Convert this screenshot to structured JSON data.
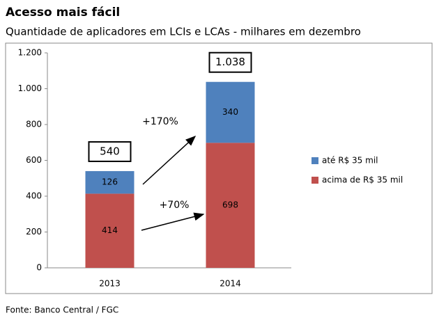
{
  "chart_data": {
    "type": "stacked_bar",
    "title": "Acesso mais fácil",
    "subtitle": "Quantidade de aplicadores em LCIs e LCAs - milhares em dezembro",
    "source": "Fonte: Banco Central / FGC",
    "categories": [
      "2013",
      "2014"
    ],
    "series": [
      {
        "name": "acima de R$ 35 mil",
        "color": "#c0504d",
        "values": [
          414,
          698
        ]
      },
      {
        "name": "até R$ 35 mil",
        "color": "#4f81bd",
        "values": [
          126,
          340
        ]
      }
    ],
    "totals": {
      "values": [
        540,
        1038
      ],
      "value_labels": [
        "540",
        "1.038"
      ]
    },
    "annotations": [
      "+170%",
      "+70%"
    ],
    "ylim": [
      0,
      1200
    ],
    "yticks": [
      0,
      200,
      400,
      600,
      800,
      {
        "value": 1000,
        "label": "1.000"
      },
      {
        "value": 1200,
        "label": "1.200"
      }
    ],
    "legend": "right"
  }
}
